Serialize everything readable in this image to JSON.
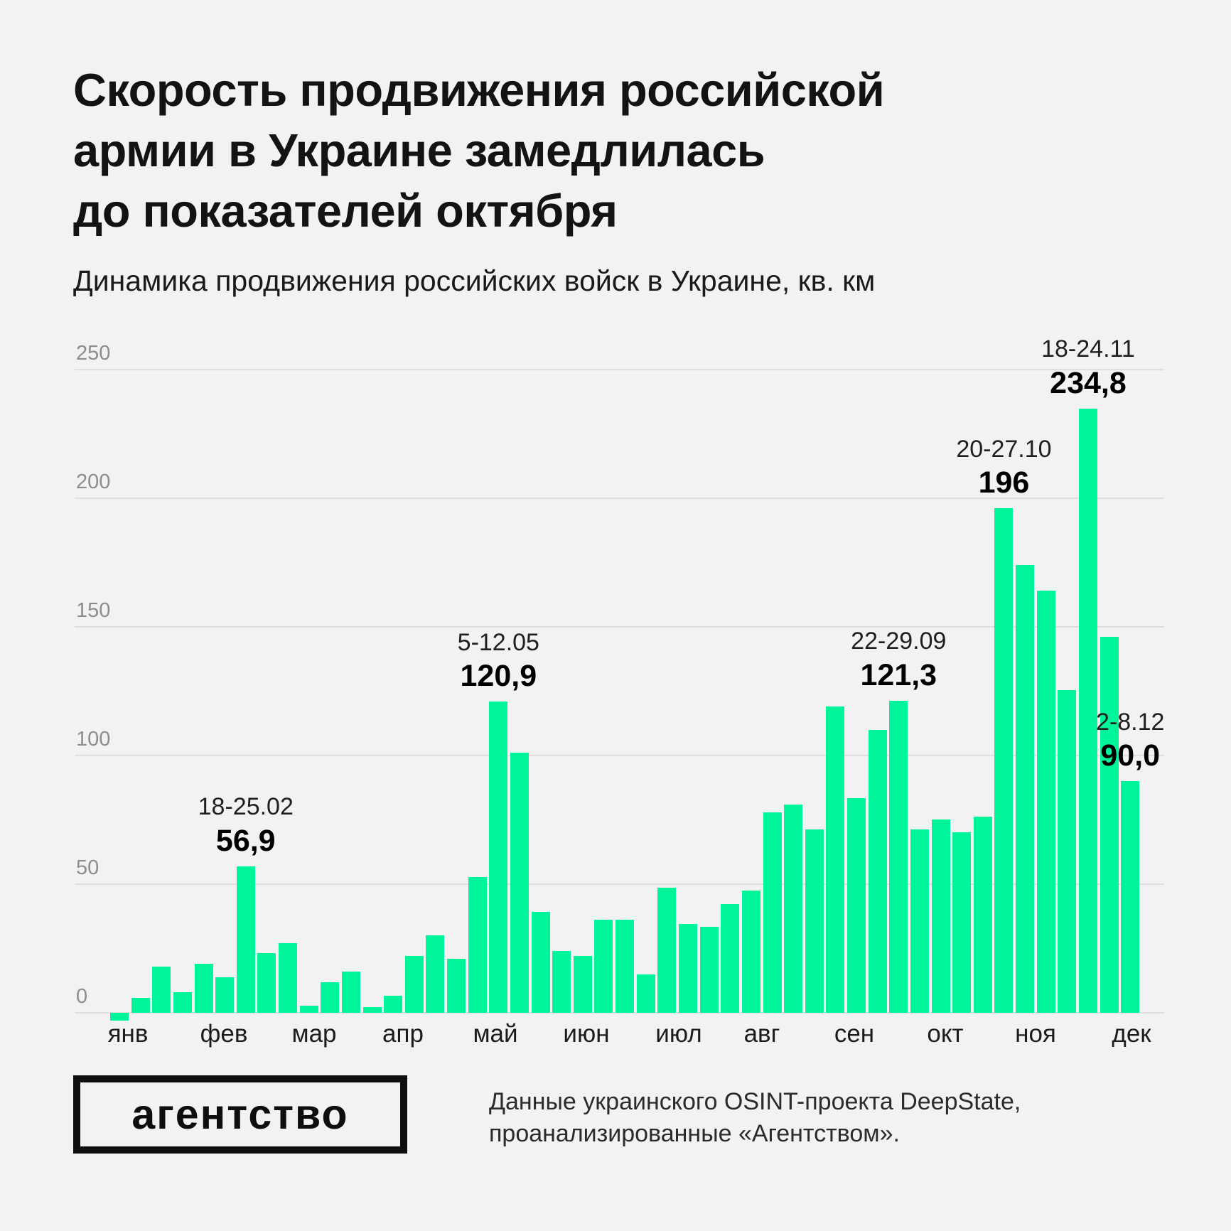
{
  "header": {
    "title_lines": [
      "Скорость продвижения российской",
      "армии в Украине замедлилась",
      "до показателей октября"
    ],
    "subtitle": "Динамика продвижения российских войск в Украине, кв. км"
  },
  "chart_data": {
    "type": "bar",
    "title": "Динамика продвижения российских войск в Украине, кв. км",
    "unit": "кв. км",
    "bar_color": "#00F59B",
    "background_color": "#F2F2F2",
    "gridline_color": "#DFDFDF",
    "grid": "horizontal",
    "ylim": [
      0,
      250
    ],
    "yticks": [
      0,
      50,
      100,
      150,
      200,
      250
    ],
    "x_months": [
      "янв",
      "фев",
      "мар",
      "апр",
      "май",
      "июн",
      "июл",
      "авг",
      "сен",
      "окт",
      "ноя",
      "дек"
    ],
    "weekly_values": [
      -3,
      5.7,
      18.0,
      7.9,
      19.1,
      13.8,
      56.9,
      23.3,
      27.2,
      2.9,
      11.8,
      16.0,
      2.1,
      6.5,
      22.1,
      30.2,
      21.0,
      52.8,
      120.9,
      101.0,
      39.1,
      24.1,
      22.1,
      36.1,
      36.1,
      14.9,
      48.6,
      34.4,
      33.3,
      42.2,
      47.5,
      77.9,
      80.9,
      71.2,
      119.1,
      83.4,
      109.9,
      121.3,
      71.2,
      75.1,
      70.1,
      76.2,
      196.0,
      174.0,
      164.2,
      125.5,
      234.8,
      146.1,
      90.0
    ],
    "annotations": [
      {
        "date": "18-25.02",
        "value": "56,9",
        "week_index": 6
      },
      {
        "date": "5-12.05",
        "value": "120,9",
        "week_index": 18
      },
      {
        "date": "22-29.09",
        "value": "121,3",
        "week_index": 37
      },
      {
        "date": "20-27.10",
        "value": "196",
        "week_index": 42
      },
      {
        "date": "18-24.11",
        "value": "234,8",
        "week_index": 46
      },
      {
        "date": "2-8.12",
        "value": "90,0",
        "week_index": 48
      }
    ]
  },
  "footer": {
    "logo_text": "агентство",
    "source_lines": [
      "Данные украинского OSINT-проекта DeepState,",
      "проанализированные «Агентством»."
    ]
  }
}
